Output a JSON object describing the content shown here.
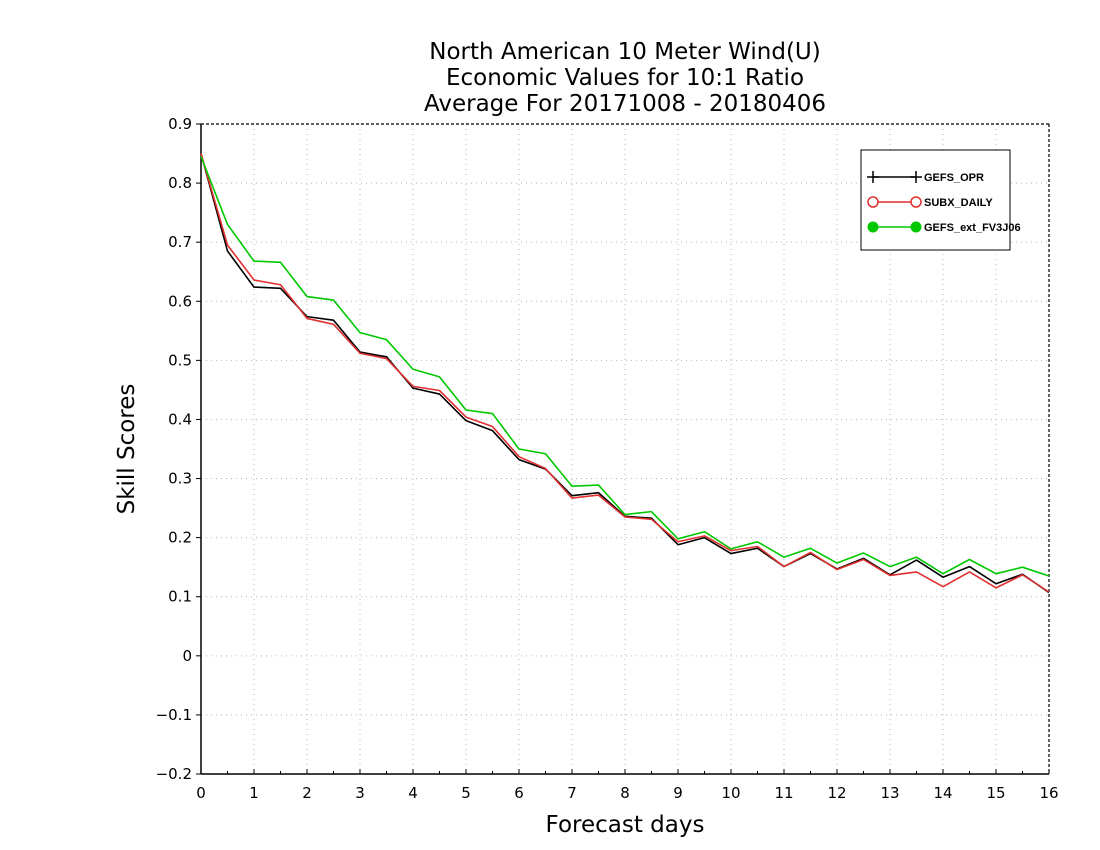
{
  "chart_data": {
    "type": "line",
    "title": [
      "North American 10 Meter Wind(U)",
      "Economic Values for 10:1 Ratio",
      "Average For 20171008 - 20180406"
    ],
    "xlabel": "Forecast days",
    "ylabel": "Skill Scores",
    "xlim": [
      0,
      16
    ],
    "ylim": [
      -0.2,
      0.9
    ],
    "xticks": [
      0,
      1,
      2,
      3,
      4,
      5,
      6,
      7,
      8,
      9,
      10,
      11,
      12,
      13,
      14,
      15,
      16
    ],
    "yticks": [
      -0.2,
      -0.1,
      0,
      0.1,
      0.2,
      0.3,
      0.4,
      0.5,
      0.6,
      0.7,
      0.8,
      0.9
    ],
    "xtick_labels": [
      "0",
      "1",
      "2",
      "3",
      "4",
      "5",
      "6",
      "7",
      "8",
      "9",
      "10",
      "11",
      "12",
      "13",
      "14",
      "15",
      "16"
    ],
    "ytick_labels": [
      "−0.2",
      "−0.1",
      "0",
      "0.1",
      "0.2",
      "0.3",
      "0.4",
      "0.5",
      "0.6",
      "0.7",
      "0.8",
      "0.9"
    ],
    "grid": true,
    "legend_position": "top-right",
    "x": [
      0,
      0.5,
      1,
      1.5,
      2,
      2.5,
      3,
      3.5,
      4,
      4.5,
      5,
      5.5,
      6,
      6.5,
      7,
      7.5,
      8,
      8.5,
      9,
      9.5,
      10,
      10.5,
      11,
      11.5,
      12,
      12.5,
      13,
      13.5,
      14,
      14.5,
      15,
      15.5,
      16
    ],
    "series": [
      {
        "name": "GEFS_OPR",
        "color": "#000000",
        "marker": "plus",
        "values": [
          0.85,
          0.685,
          0.624,
          0.622,
          0.574,
          0.568,
          0.514,
          0.506,
          0.453,
          0.443,
          0.398,
          0.381,
          0.332,
          0.316,
          0.271,
          0.276,
          0.236,
          0.233,
          0.188,
          0.2,
          0.173,
          0.182,
          0.151,
          0.173,
          0.147,
          0.165,
          0.137,
          0.162,
          0.133,
          0.151,
          0.122,
          0.138,
          0.107
        ]
      },
      {
        "name": "SUBX_DAILY",
        "color": "#e03030",
        "marker": "circle",
        "values": [
          0.85,
          0.695,
          0.636,
          0.628,
          0.571,
          0.561,
          0.512,
          0.503,
          0.456,
          0.449,
          0.404,
          0.388,
          0.337,
          0.317,
          0.267,
          0.272,
          0.235,
          0.231,
          0.193,
          0.203,
          0.178,
          0.185,
          0.151,
          0.175,
          0.146,
          0.163,
          0.136,
          0.142,
          0.117,
          0.142,
          0.115,
          0.137,
          0.108
        ]
      },
      {
        "name": "GEFS_ext_FV3J06",
        "color": "#00c800",
        "marker": "dot",
        "values": [
          0.845,
          0.73,
          0.668,
          0.666,
          0.608,
          0.602,
          0.547,
          0.535,
          0.485,
          0.472,
          0.416,
          0.41,
          0.35,
          0.342,
          0.287,
          0.289,
          0.239,
          0.244,
          0.198,
          0.21,
          0.181,
          0.193,
          0.167,
          0.182,
          0.157,
          0.174,
          0.151,
          0.167,
          0.139,
          0.163,
          0.139,
          0.15,
          0.135
        ]
      }
    ]
  }
}
